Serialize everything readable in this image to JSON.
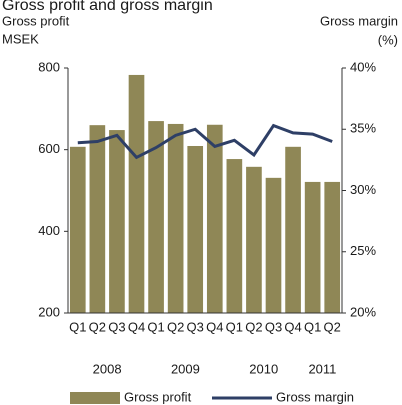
{
  "chart_data": {
    "type": "bar-line",
    "title": "Gross profit and gross margin",
    "y_label": [
      "Gross profit",
      "MSEK"
    ],
    "y2_label": [
      "Gross margin",
      "(%)"
    ],
    "categories": [
      "Q1",
      "Q2",
      "Q3",
      "Q4",
      "Q1",
      "Q2",
      "Q3",
      "Q4",
      "Q1",
      "Q2",
      "Q3",
      "Q4",
      "Q1",
      "Q2"
    ],
    "year_labels": [
      "2008",
      "2009",
      "2010",
      "2011"
    ],
    "series": [
      {
        "name": "Gross profit",
        "type": "bar",
        "color": "#8f8756",
        "values": [
          607,
          660,
          648,
          783,
          670,
          663,
          609,
          661,
          577,
          558,
          531,
          607,
          521,
          521
        ]
      },
      {
        "name": "Gross margin",
        "type": "line",
        "axis": "y2",
        "color": "#2e3f66",
        "values": [
          33.9,
          34.0,
          34.5,
          32.7,
          33.5,
          34.5,
          35.0,
          33.6,
          34.1,
          32.9,
          35.3,
          34.7,
          34.6,
          34.0
        ]
      }
    ],
    "ylim": [
      200,
      800
    ],
    "yticks": [
      200,
      400,
      600,
      800
    ],
    "y2lim": [
      20,
      40
    ],
    "y2ticks": [
      {
        "value": 20,
        "label": "20%"
      },
      {
        "value": 25,
        "label": "25%"
      },
      {
        "value": 30,
        "label": "30%"
      },
      {
        "value": 35,
        "label": "35%"
      },
      {
        "value": 40,
        "label": "40%"
      }
    ],
    "grid": false,
    "legend": "bottom"
  }
}
